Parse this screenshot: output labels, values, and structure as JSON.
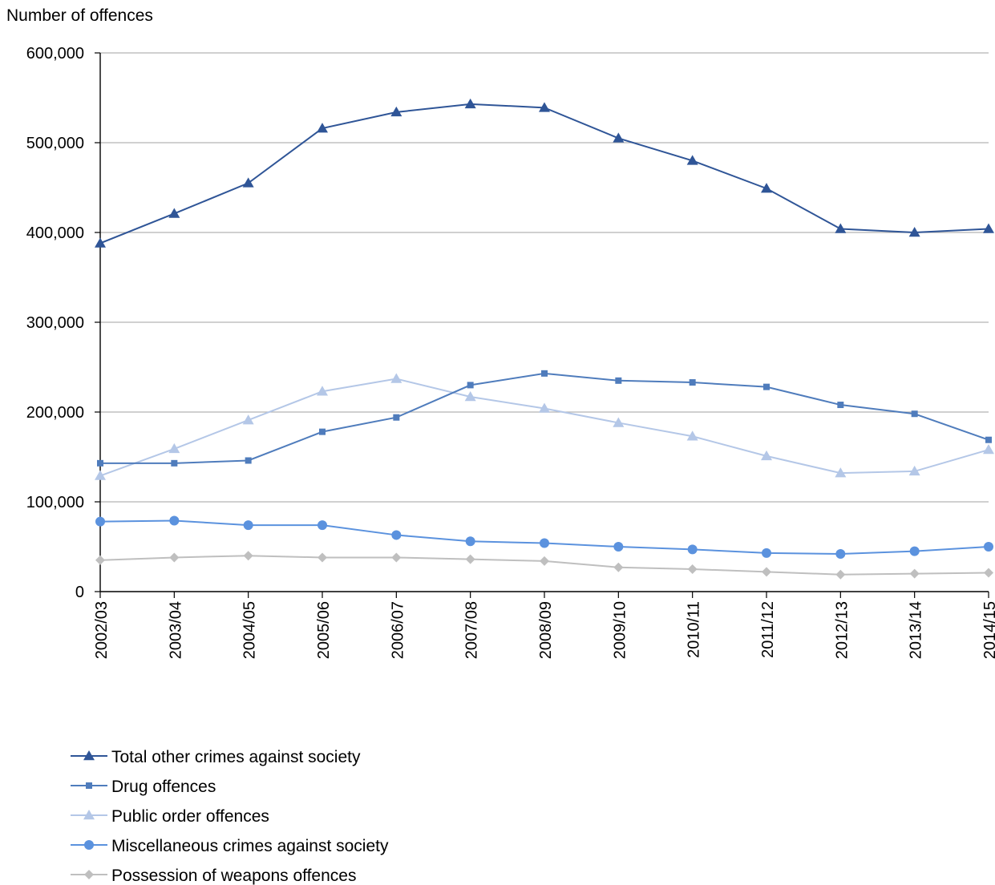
{
  "chart_data": {
    "type": "line",
    "ylabel": "Number of offences",
    "xlabel": "",
    "categories": [
      "2002/03",
      "2003/04",
      "2004/05",
      "2005/06",
      "2006/07",
      "2007/08",
      "2008/09",
      "2009/10",
      "2010/11",
      "2011/12",
      "2012/13",
      "2013/14",
      "2014/15"
    ],
    "ylim": [
      0,
      600000
    ],
    "yticks": [
      0,
      100000,
      200000,
      300000,
      400000,
      500000,
      600000
    ],
    "ytick_labels": [
      "0",
      "100,000",
      "200,000",
      "300,000",
      "400,000",
      "500,000",
      "600,000"
    ],
    "grid": true,
    "legend_position": "bottom-left",
    "series": [
      {
        "name": "Total other crimes against society",
        "marker": "triangle",
        "color": "#2f5597",
        "values": [
          388000,
          421000,
          455000,
          516000,
          534000,
          543000,
          539000,
          505000,
          480000,
          449000,
          404000,
          400000,
          404000
        ]
      },
      {
        "name": "Drug offences",
        "marker": "square",
        "color": "#4f7cbc",
        "values": [
          143000,
          143000,
          146000,
          178000,
          194000,
          230000,
          243000,
          235000,
          233000,
          228000,
          208000,
          198000,
          169000
        ]
      },
      {
        "name": "Public order offences",
        "marker": "triangle",
        "color": "#b4c7e7",
        "values": [
          129000,
          159000,
          191000,
          223000,
          237000,
          217000,
          204000,
          188000,
          173000,
          151000,
          132000,
          134000,
          158000
        ]
      },
      {
        "name": "Miscellaneous crimes against society",
        "marker": "circle",
        "color": "#5b92de",
        "values": [
          78000,
          79000,
          74000,
          74000,
          63000,
          56000,
          54000,
          50000,
          47000,
          43000,
          42000,
          45000,
          50000
        ]
      },
      {
        "name": "Possession of weapons offences",
        "marker": "diamond",
        "color": "#bfbfbf",
        "values": [
          35000,
          38000,
          40000,
          38000,
          38000,
          36000,
          34000,
          27000,
          25000,
          22000,
          19000,
          20000,
          21000
        ]
      }
    ]
  }
}
